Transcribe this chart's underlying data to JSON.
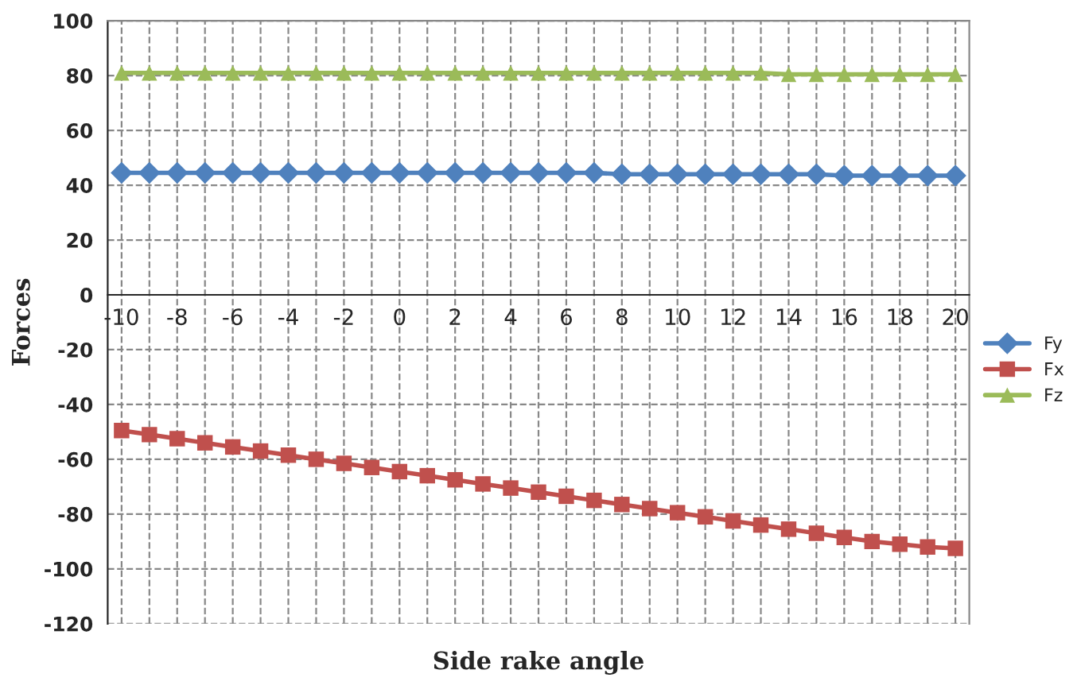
{
  "chart_data": {
    "type": "line",
    "xlabel": "Side rake angle",
    "ylabel": "Forces",
    "x": [
      -10,
      -9,
      -8,
      -7,
      -6,
      -5,
      -4,
      -3,
      -2,
      -1,
      0,
      1,
      2,
      3,
      4,
      5,
      6,
      7,
      8,
      9,
      10,
      11,
      12,
      13,
      14,
      15,
      16,
      17,
      18,
      19,
      20
    ],
    "series": [
      {
        "name": "Fy",
        "color": "#4f81bd",
        "marker": "diamond",
        "values": [
          44.5,
          44.5,
          44.5,
          44.5,
          44.5,
          44.5,
          44.5,
          44.5,
          44.5,
          44.5,
          44.5,
          44.5,
          44.5,
          44.5,
          44.5,
          44.5,
          44.5,
          44.5,
          44,
          44,
          44,
          44,
          44,
          44,
          44,
          44,
          43.5,
          43.5,
          43.5,
          43.5,
          43.5
        ]
      },
      {
        "name": "Fx",
        "color": "#c0504d",
        "marker": "square",
        "values": [
          -49.5,
          -51,
          -52.5,
          -54,
          -55.5,
          -57,
          -58.5,
          -60,
          -61.5,
          -63,
          -64.5,
          -66,
          -67.5,
          -69,
          -70.5,
          -72,
          -73.5,
          -75,
          -76.5,
          -78,
          -79.5,
          -81,
          -82.5,
          -84,
          -85.5,
          -87,
          -88.5,
          -90,
          -91,
          -92,
          -92.5
        ]
      },
      {
        "name": "Fz",
        "color": "#9bbb59",
        "marker": "triangle",
        "values": [
          81,
          81,
          81,
          81,
          81,
          81,
          81,
          81,
          81,
          81,
          81,
          81,
          81,
          81,
          81,
          81,
          81,
          81,
          81,
          81,
          81,
          81,
          81,
          81,
          80.5,
          80.5,
          80.5,
          80.5,
          80.5,
          80.5,
          80.5
        ]
      }
    ],
    "xlim": [
      -10.5,
      20.5
    ],
    "ylim": [
      -120,
      100
    ],
    "xticks": [
      -10,
      {
        "value": -9,
        "label": null
      },
      -8,
      {
        "value": -7,
        "label": null
      },
      -6,
      {
        "value": -5,
        "label": null
      },
      -4,
      {
        "value": -3,
        "label": null
      },
      -2,
      {
        "value": -1,
        "label": null
      },
      0,
      {
        "value": 1,
        "label": null
      },
      2,
      {
        "value": 3,
        "label": null
      },
      4,
      {
        "value": 5,
        "label": null
      },
      6,
      {
        "value": 7,
        "label": null
      },
      8,
      {
        "value": 9,
        "label": null
      },
      10,
      {
        "value": 11,
        "label": null
      },
      12,
      {
        "value": 13,
        "label": null
      },
      14,
      {
        "value": 15,
        "label": null
      },
      16,
      {
        "value": 17,
        "label": null
      },
      18,
      {
        "value": 19,
        "label": null
      },
      20
    ],
    "yticks": [
      -120,
      -100,
      -80,
      -60,
      -40,
      -20,
      0,
      20,
      40,
      60,
      80,
      100
    ],
    "grid": true,
    "legend": "right",
    "line_style": "solid"
  }
}
